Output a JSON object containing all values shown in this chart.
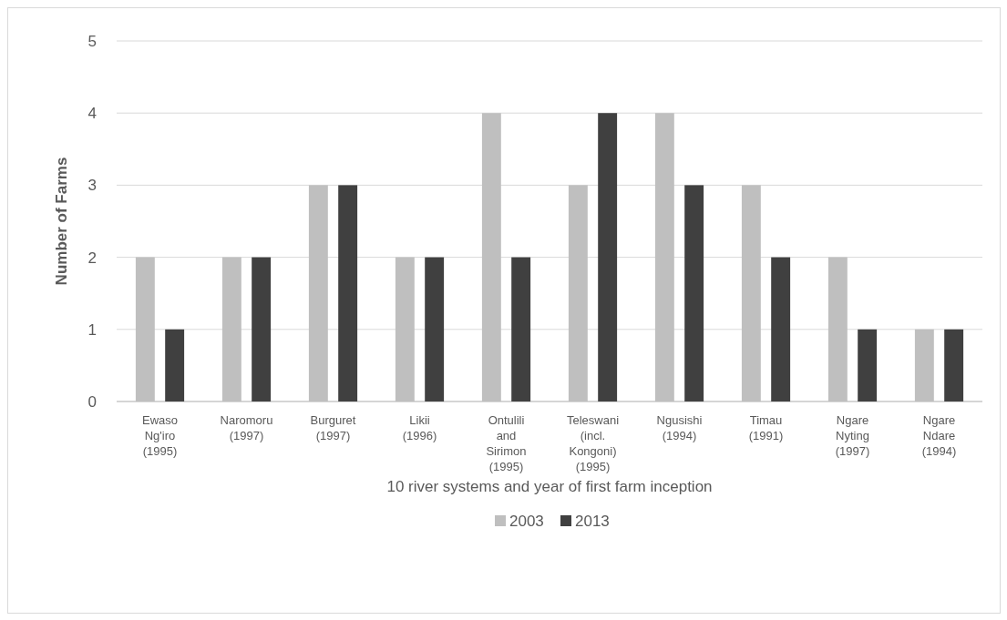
{
  "chart_data": {
    "type": "bar",
    "xlabel": "10 river systems and year of first farm inception",
    "ylabel": "Number of Farms",
    "categories": [
      "Ewaso Ng'iro (1995)",
      "Naromoru (1997)",
      "Burguret (1997)",
      "Likii (1996)",
      "Ontulili and Sirimon (1995)",
      "Teleswani (incl. Kongoni) (1995)",
      "Ngusishi (1994)",
      "Timau (1991)",
      "Ngare Nyting (1997)",
      "Ngare Ndare (1994)"
    ],
    "series": [
      {
        "name": "2003",
        "color": "#bfbfbf",
        "values": [
          2,
          2,
          3,
          2,
          4,
          3,
          4,
          3,
          2,
          1
        ]
      },
      {
        "name": "2013",
        "color": "#404040",
        "values": [
          1,
          2,
          3,
          2,
          2,
          4,
          3,
          2,
          1,
          1
        ]
      }
    ],
    "ylim": [
      0,
      5
    ],
    "yticks": [
      0,
      1,
      2,
      3,
      4,
      5
    ],
    "grid": "y",
    "legend": "bottom"
  }
}
